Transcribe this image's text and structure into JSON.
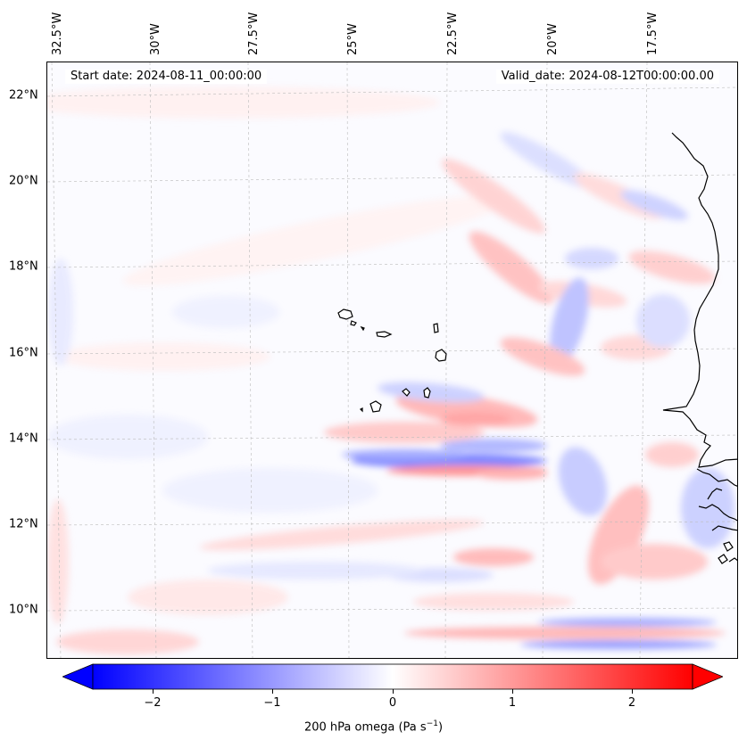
{
  "map": {
    "start_date": "Start date: 2024-08-11_00:00:00",
    "valid_date": "Valid_date: 2024-08-12T00:00:00.00",
    "lon_ticks": [
      "32.5°W",
      "30°W",
      "27.5°W",
      "25°W",
      "22.5°W",
      "20°W",
      "17.5°W"
    ],
    "lat_ticks": [
      "22°N",
      "20°N",
      "18°N",
      "16°N",
      "14°N",
      "12°N",
      "10°N"
    ],
    "variable": "200 hPa omega",
    "units_base": "Pa s",
    "units_exp": "−1",
    "gridlines": "dashed",
    "colormap": "bwr",
    "extend": "both"
  },
  "colorbar": {
    "range": [
      -2.6,
      2.6
    ],
    "ticks": [
      "−2",
      "−1",
      "0",
      "1",
      "2"
    ],
    "tick_values": [
      -2,
      -1,
      0,
      1,
      2
    ],
    "colors": {
      "negative": "#0000ff",
      "zero": "#ffffff",
      "positive": "#ff0000"
    }
  }
}
